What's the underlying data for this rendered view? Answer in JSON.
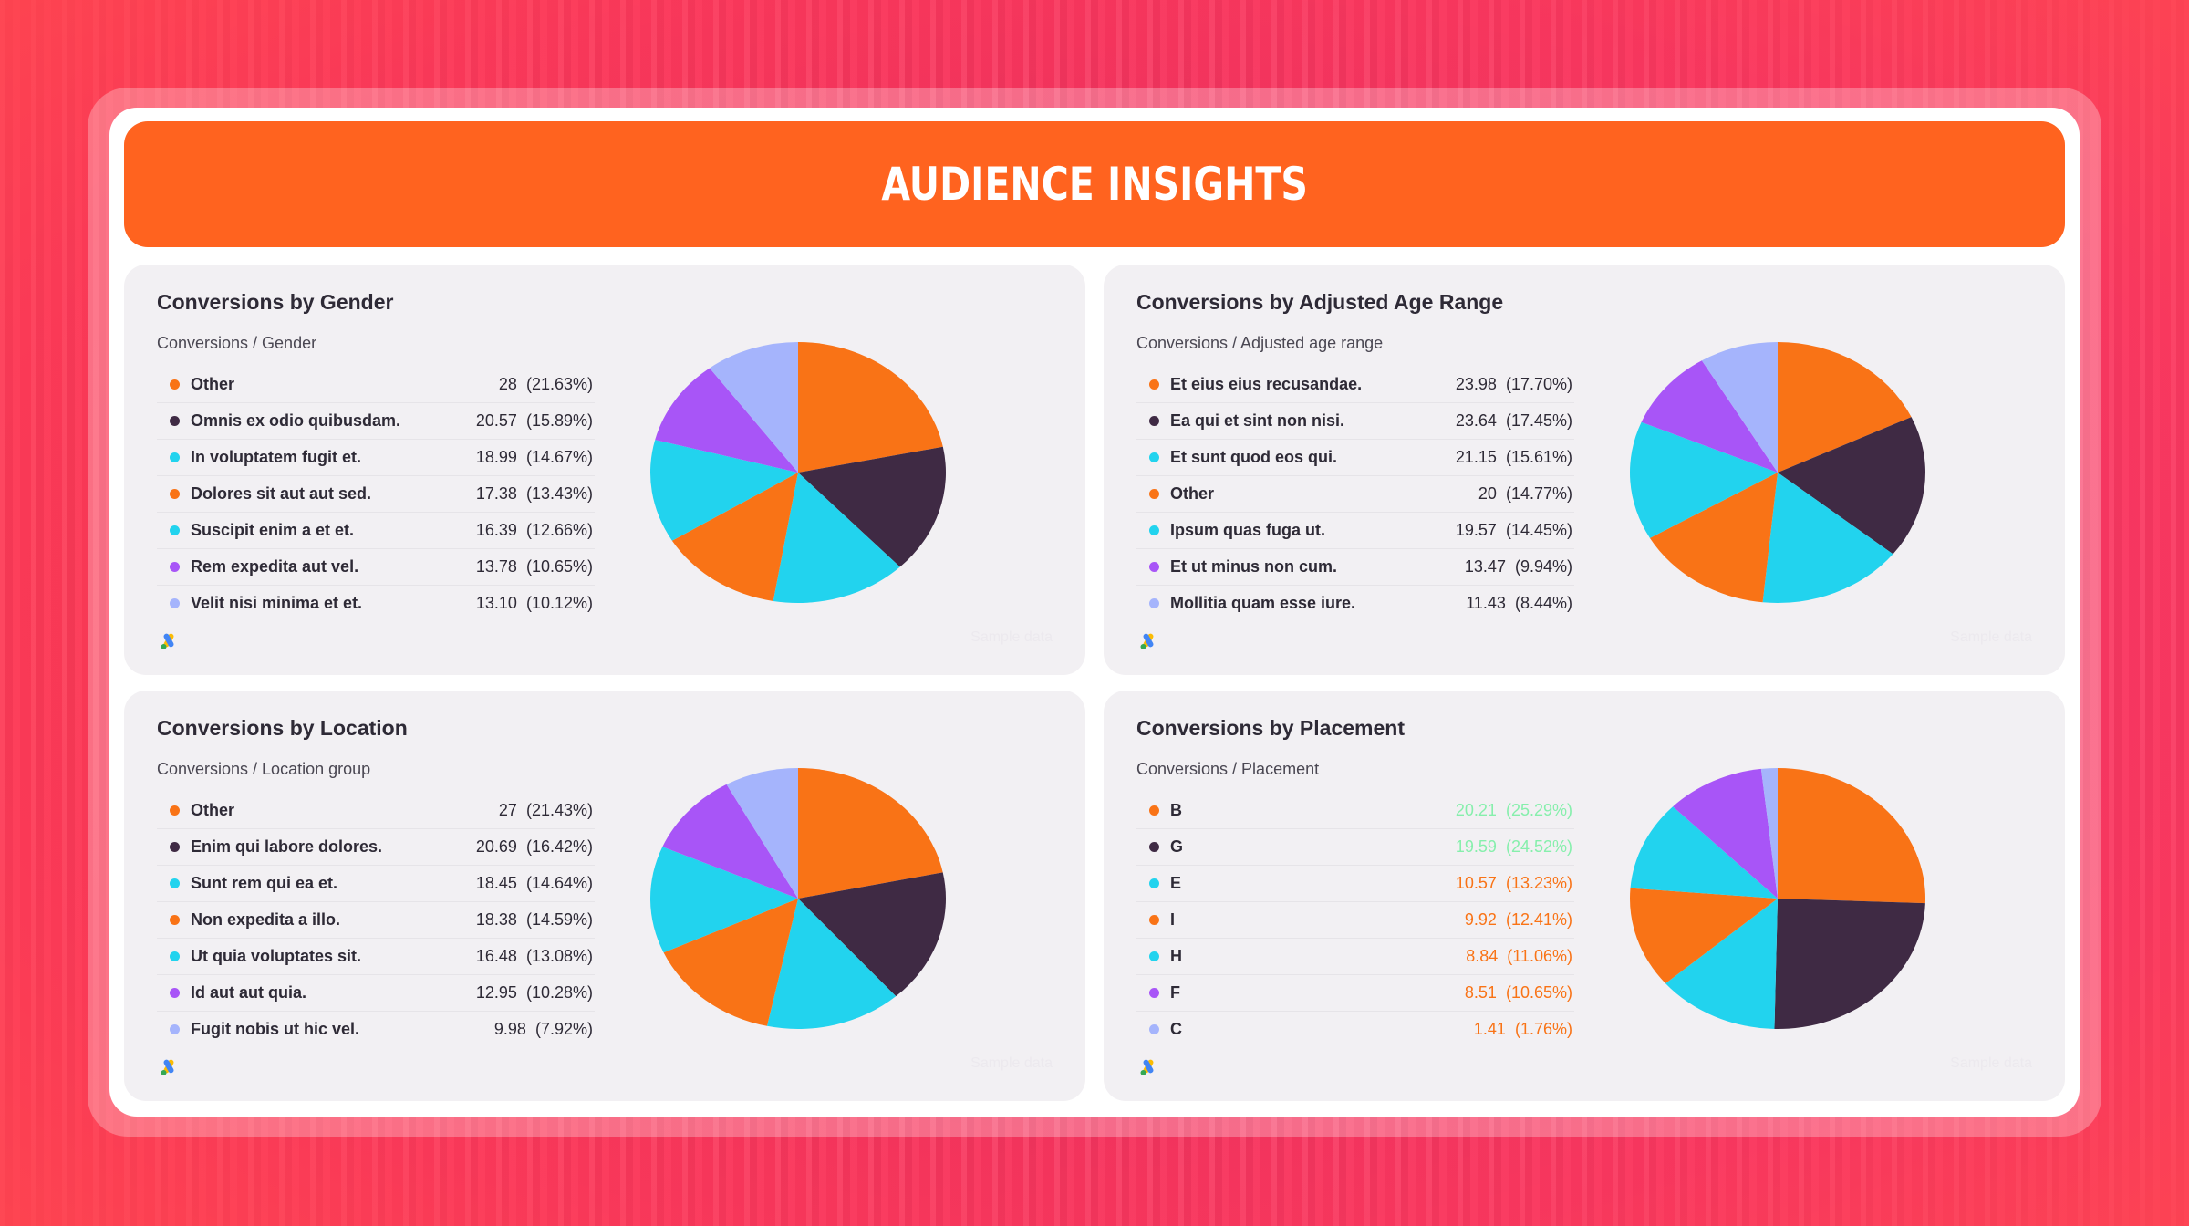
{
  "header": {
    "title": "AUDIENCE INSIGHTS"
  },
  "colors": {
    "banner": "#ff631f",
    "orange": "#f97316",
    "dark": "#3f2a44",
    "cyan": "#22d3ee",
    "purple": "#a855f7",
    "lavender": "#a5b4fc",
    "positive": "#86efac",
    "negative": "#f97316"
  },
  "cards": [
    {
      "title": "Conversions by Gender",
      "subtitle": "Conversions / Gender",
      "watermark": "Sample data",
      "icon": "google-ads-icon",
      "rows": [
        {
          "label": "Other",
          "value": "28",
          "pct": "(21.63%)",
          "color": "#f97316"
        },
        {
          "label": "Omnis ex odio quibusdam.",
          "value": "20.57",
          "pct": "(15.89%)",
          "color": "#3f2a44"
        },
        {
          "label": "In voluptatem fugit et.",
          "value": "18.99",
          "pct": "(14.67%)",
          "color": "#22d3ee"
        },
        {
          "label": "Dolores sit aut aut sed.",
          "value": "17.38",
          "pct": "(13.43%)",
          "color": "#f97316"
        },
        {
          "label": "Suscipit enim a et et.",
          "value": "16.39",
          "pct": "(12.66%)",
          "color": "#22d3ee"
        },
        {
          "label": "Rem expedita aut vel.",
          "value": "13.78",
          "pct": "(10.65%)",
          "color": "#a855f7"
        },
        {
          "label": "Velit nisi minima et et.",
          "value": "13.10",
          "pct": "(10.12%)",
          "color": "#a5b4fc"
        }
      ]
    },
    {
      "title": "Conversions by Adjusted Age Range",
      "subtitle": "Conversions / Adjusted age range",
      "watermark": "Sample data",
      "icon": "google-ads-icon",
      "rows": [
        {
          "label": "Et eius eius recusandae.",
          "value": "23.98",
          "pct": "(17.70%)",
          "color": "#f97316"
        },
        {
          "label": "Ea qui et sint non nisi.",
          "value": "23.64",
          "pct": "(17.45%)",
          "color": "#3f2a44"
        },
        {
          "label": "Et sunt quod eos qui.",
          "value": "21.15",
          "pct": "(15.61%)",
          "color": "#22d3ee"
        },
        {
          "label": "Other",
          "value": "20",
          "pct": "(14.77%)",
          "color": "#f97316"
        },
        {
          "label": "Ipsum quas fuga ut.",
          "value": "19.57",
          "pct": "(14.45%)",
          "color": "#22d3ee"
        },
        {
          "label": "Et ut minus non cum.",
          "value": "13.47",
          "pct": "(9.94%)",
          "color": "#a855f7"
        },
        {
          "label": "Mollitia quam esse iure.",
          "value": "11.43",
          "pct": "(8.44%)",
          "color": "#a5b4fc"
        }
      ]
    },
    {
      "title": "Conversions by Location",
      "subtitle": "Conversions / Location group",
      "watermark": "Sample data",
      "icon": "google-ads-icon",
      "rows": [
        {
          "label": "Other",
          "value": "27",
          "pct": "(21.43%)",
          "color": "#f97316"
        },
        {
          "label": "Enim qui labore dolores.",
          "value": "20.69",
          "pct": "(16.42%)",
          "color": "#3f2a44"
        },
        {
          "label": "Sunt rem qui ea et.",
          "value": "18.45",
          "pct": "(14.64%)",
          "color": "#22d3ee"
        },
        {
          "label": "Non expedita a illo.",
          "value": "18.38",
          "pct": "(14.59%)",
          "color": "#f97316"
        },
        {
          "label": "Ut quia voluptates sit.",
          "value": "16.48",
          "pct": "(13.08%)",
          "color": "#22d3ee"
        },
        {
          "label": "Id aut aut quia.",
          "value": "12.95",
          "pct": "(10.28%)",
          "color": "#a855f7"
        },
        {
          "label": "Fugit nobis ut hic vel.",
          "value": "9.98",
          "pct": "(7.92%)",
          "color": "#a5b4fc"
        }
      ]
    },
    {
      "title": "Conversions by Placement",
      "subtitle": "Conversions / Placement",
      "watermark": "Sample data",
      "icon": "google-ads-icon",
      "rows": [
        {
          "label": "B",
          "value": "20.21",
          "pct": "(25.29%)",
          "color": "#f97316",
          "valueColor": "#86efac"
        },
        {
          "label": "G",
          "value": "19.59",
          "pct": "(24.52%)",
          "color": "#3f2a44",
          "valueColor": "#86efac"
        },
        {
          "label": "E",
          "value": "10.57",
          "pct": "(13.23%)",
          "color": "#22d3ee",
          "valueColor": "#f97316"
        },
        {
          "label": "I",
          "value": "9.92",
          "pct": "(12.41%)",
          "color": "#f97316",
          "valueColor": "#f97316"
        },
        {
          "label": "H",
          "value": "8.84",
          "pct": "(11.06%)",
          "color": "#22d3ee",
          "valueColor": "#f97316"
        },
        {
          "label": "F",
          "value": "8.51",
          "pct": "(10.65%)",
          "color": "#a855f7",
          "valueColor": "#f97316"
        },
        {
          "label": "C",
          "value": "1.41",
          "pct": "(1.76%)",
          "color": "#a5b4fc",
          "valueColor": "#f97316"
        }
      ]
    }
  ],
  "chart_data": [
    {
      "type": "pie",
      "title": "Conversions by Gender",
      "subtitle": "Conversions / Gender",
      "categories": [
        "Other",
        "Omnis ex odio quibusdam.",
        "In voluptatem fugit et.",
        "Dolores sit aut aut sed.",
        "Suscipit enim a et et.",
        "Rem expedita aut vel.",
        "Velit nisi minima et et."
      ],
      "values": [
        28,
        20.57,
        18.99,
        17.38,
        16.39,
        13.78,
        13.1
      ],
      "percentages": [
        21.63,
        15.89,
        14.67,
        13.43,
        12.66,
        10.65,
        10.12
      ],
      "colors": [
        "#f97316",
        "#3f2a44",
        "#22d3ee",
        "#f97316",
        "#22d3ee",
        "#a855f7",
        "#a5b4fc"
      ]
    },
    {
      "type": "pie",
      "title": "Conversions by Adjusted Age Range",
      "subtitle": "Conversions / Adjusted age range",
      "categories": [
        "Et eius eius recusandae.",
        "Ea qui et sint non nisi.",
        "Et sunt quod eos qui.",
        "Other",
        "Ipsum quas fuga ut.",
        "Et ut minus non cum.",
        "Mollitia quam esse iure."
      ],
      "values": [
        23.98,
        23.64,
        21.15,
        20,
        19.57,
        13.47,
        11.43
      ],
      "percentages": [
        17.7,
        17.45,
        15.61,
        14.77,
        14.45,
        9.94,
        8.44
      ],
      "colors": [
        "#f97316",
        "#3f2a44",
        "#22d3ee",
        "#f97316",
        "#22d3ee",
        "#a855f7",
        "#a5b4fc"
      ]
    },
    {
      "type": "pie",
      "title": "Conversions by Location",
      "subtitle": "Conversions / Location group",
      "categories": [
        "Other",
        "Enim qui labore dolores.",
        "Sunt rem qui ea et.",
        "Non expedita a illo.",
        "Ut quia voluptates sit.",
        "Id aut aut quia.",
        "Fugit nobis ut hic vel."
      ],
      "values": [
        27,
        20.69,
        18.45,
        18.38,
        16.48,
        12.95,
        9.98
      ],
      "percentages": [
        21.43,
        16.42,
        14.64,
        14.59,
        13.08,
        10.28,
        7.92
      ],
      "colors": [
        "#f97316",
        "#3f2a44",
        "#22d3ee",
        "#f97316",
        "#22d3ee",
        "#a855f7",
        "#a5b4fc"
      ]
    },
    {
      "type": "pie",
      "title": "Conversions by Placement",
      "subtitle": "Conversions / Placement",
      "categories": [
        "B",
        "G",
        "E",
        "I",
        "H",
        "F",
        "C"
      ],
      "values": [
        20.21,
        19.59,
        10.57,
        9.92,
        8.84,
        8.51,
        1.41
      ],
      "percentages": [
        25.29,
        24.52,
        13.23,
        12.41,
        11.06,
        10.65,
        1.76
      ],
      "colors": [
        "#f97316",
        "#3f2a44",
        "#22d3ee",
        "#f97316",
        "#22d3ee",
        "#a855f7",
        "#a5b4fc"
      ]
    }
  ]
}
